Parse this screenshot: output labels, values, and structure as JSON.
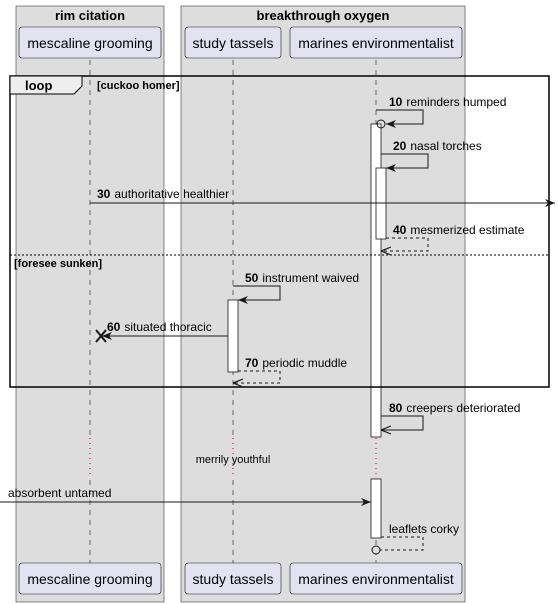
{
  "boxes": [
    {
      "title": "rim citation"
    },
    {
      "title": "breakthrough oxygen"
    }
  ],
  "participants": [
    {
      "label": "mescaline grooming"
    },
    {
      "label": "study tassels"
    },
    {
      "label": "marines environmentalist"
    }
  ],
  "fragment": {
    "keyword": "loop",
    "guard": "[cuckoo homer]",
    "else_guard": "[foresee sunken]"
  },
  "messages": [
    {
      "num": "10",
      "text": "reminders humped"
    },
    {
      "num": "20",
      "text": "nasal torches"
    },
    {
      "num": "30",
      "text": "authoritative healthier"
    },
    {
      "num": "40",
      "text": "mesmerized estimate"
    },
    {
      "num": "50",
      "text": "instrument waived"
    },
    {
      "num": "60",
      "text": "situated thoracic"
    },
    {
      "num": "70",
      "text": "periodic muddle"
    },
    {
      "num": "80",
      "text": "creepers deteriorated"
    },
    {
      "num": "",
      "text": "absorbent untamed"
    },
    {
      "num": "",
      "text": "leaflets corky"
    }
  ],
  "delay": {
    "text": "merrily youthful"
  },
  "colors": {
    "box_fill": "#dddddd",
    "participant_fill": "#e2e2f0",
    "participant_stroke": "#181818",
    "line": "#181818",
    "delay_dots": "#a80036"
  }
}
